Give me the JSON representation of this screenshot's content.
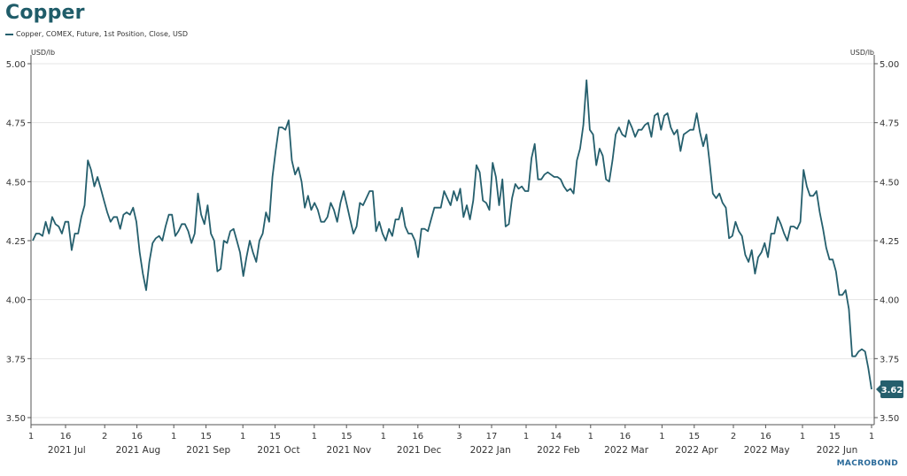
{
  "chart_data": {
    "type": "line",
    "title": "Copper",
    "legend": [
      "Copper, COMEX, Future, 1st Position, Close, USD"
    ],
    "legend_position": "top-left",
    "ylabel_left": "USD/lb",
    "ylabel_right": "USD/lb",
    "ylim": [
      3.5,
      5.0
    ],
    "yticks": [
      "3.50",
      "3.75",
      "4.00",
      "4.25",
      "4.50",
      "4.75",
      "5.00"
    ],
    "grid": true,
    "x_start": "2021-07-01",
    "x_end": "2022-07-01",
    "xticks": [
      {
        "date": "2021-07-01",
        "label": "1"
      },
      {
        "date": "2021-07-16",
        "label": "16"
      },
      {
        "date": "2021-08-02",
        "label": "2"
      },
      {
        "date": "2021-08-16",
        "label": "16"
      },
      {
        "date": "2021-09-01",
        "label": "1"
      },
      {
        "date": "2021-09-15",
        "label": "15"
      },
      {
        "date": "2021-10-01",
        "label": "1"
      },
      {
        "date": "2021-10-15",
        "label": "15"
      },
      {
        "date": "2021-11-01",
        "label": "1"
      },
      {
        "date": "2021-11-15",
        "label": "15"
      },
      {
        "date": "2021-12-01",
        "label": "1"
      },
      {
        "date": "2021-12-16",
        "label": "16"
      },
      {
        "date": "2022-01-03",
        "label": "3"
      },
      {
        "date": "2022-01-17",
        "label": "17"
      },
      {
        "date": "2022-02-01",
        "label": "1"
      },
      {
        "date": "2022-02-14",
        "label": "14"
      },
      {
        "date": "2022-03-01",
        "label": "1"
      },
      {
        "date": "2022-03-16",
        "label": "16"
      },
      {
        "date": "2022-04-01",
        "label": "1"
      },
      {
        "date": "2022-04-15",
        "label": "15"
      },
      {
        "date": "2022-05-02",
        "label": "2"
      },
      {
        "date": "2022-05-16",
        "label": "16"
      },
      {
        "date": "2022-06-01",
        "label": "1"
      },
      {
        "date": "2022-06-15",
        "label": "15"
      },
      {
        "date": "2022-07-01",
        "label": "1"
      }
    ],
    "months": [
      {
        "start": "2021-07-01",
        "end": "2021-08-01",
        "label": "2021 Jul"
      },
      {
        "start": "2021-08-01",
        "end": "2021-09-01",
        "label": "2021 Aug"
      },
      {
        "start": "2021-09-01",
        "end": "2021-10-01",
        "label": "2021 Sep"
      },
      {
        "start": "2021-10-01",
        "end": "2021-11-01",
        "label": "2021 Oct"
      },
      {
        "start": "2021-11-01",
        "end": "2021-12-01",
        "label": "2021 Nov"
      },
      {
        "start": "2021-12-01",
        "end": "2022-01-01",
        "label": "2021 Dec"
      },
      {
        "start": "2022-01-01",
        "end": "2022-02-01",
        "label": "2022 Jan"
      },
      {
        "start": "2022-02-01",
        "end": "2022-03-01",
        "label": "2022 Feb"
      },
      {
        "start": "2022-03-01",
        "end": "2022-04-01",
        "label": "2022 Mar"
      },
      {
        "start": "2022-04-01",
        "end": "2022-05-01",
        "label": "2022 Apr"
      },
      {
        "start": "2022-05-01",
        "end": "2022-06-01",
        "label": "2022 May"
      },
      {
        "start": "2022-06-01",
        "end": "2022-07-01",
        "label": "2022 Jun"
      }
    ],
    "series": [
      {
        "name": "Copper, COMEX, Future, 1st Position, Close, USD",
        "color": "#255f6d",
        "last_value_label": "3.62",
        "values": [
          4.25,
          4.28,
          4.28,
          4.27,
          4.33,
          4.28,
          4.35,
          4.32,
          4.31,
          4.28,
          4.33,
          4.33,
          4.21,
          4.28,
          4.28,
          4.35,
          4.4,
          4.59,
          4.55,
          4.48,
          4.52,
          4.47,
          4.42,
          4.37,
          4.33,
          4.35,
          4.35,
          4.3,
          4.36,
          4.37,
          4.36,
          4.39,
          4.33,
          4.2,
          4.11,
          4.04,
          4.16,
          4.24,
          4.26,
          4.27,
          4.25,
          4.31,
          4.36,
          4.36,
          4.27,
          4.29,
          4.32,
          4.32,
          4.29,
          4.24,
          4.28,
          4.45,
          4.36,
          4.32,
          4.4,
          4.28,
          4.25,
          4.12,
          4.13,
          4.25,
          4.24,
          4.29,
          4.3,
          4.25,
          4.2,
          4.1,
          4.18,
          4.25,
          4.2,
          4.16,
          4.25,
          4.28,
          4.37,
          4.33,
          4.52,
          4.63,
          4.73,
          4.73,
          4.72,
          4.76,
          4.59,
          4.53,
          4.56,
          4.5,
          4.39,
          4.44,
          4.38,
          4.41,
          4.38,
          4.33,
          4.33,
          4.35,
          4.41,
          4.38,
          4.33,
          4.41,
          4.46,
          4.4,
          4.34,
          4.28,
          4.31,
          4.41,
          4.4,
          4.43,
          4.46,
          4.46,
          4.29,
          4.33,
          4.28,
          4.25,
          4.3,
          4.27,
          4.34,
          4.34,
          4.39,
          4.31,
          4.28,
          4.28,
          4.25,
          4.18,
          4.3,
          4.3,
          4.29,
          4.34,
          4.39,
          4.39,
          4.39,
          4.46,
          4.43,
          4.4,
          4.46,
          4.42,
          4.47,
          4.35,
          4.4,
          4.34,
          4.42,
          4.57,
          4.54,
          4.42,
          4.41,
          4.38,
          4.58,
          4.52,
          4.4,
          4.51,
          4.31,
          4.32,
          4.43,
          4.49,
          4.47,
          4.48,
          4.46,
          4.46,
          4.6,
          4.66,
          4.51,
          4.51,
          4.53,
          4.54,
          4.53,
          4.52,
          4.52,
          4.51,
          4.48,
          4.46,
          4.47,
          4.45,
          4.59,
          4.64,
          4.74,
          4.93,
          4.72,
          4.7,
          4.57,
          4.64,
          4.61,
          4.51,
          4.5,
          4.59,
          4.7,
          4.73,
          4.7,
          4.69,
          4.76,
          4.73,
          4.69,
          4.72,
          4.72,
          4.74,
          4.75,
          4.69,
          4.78,
          4.79,
          4.72,
          4.78,
          4.79,
          4.73,
          4.7,
          4.72,
          4.63,
          4.7,
          4.71,
          4.72,
          4.72,
          4.79,
          4.71,
          4.65,
          4.7,
          4.58,
          4.45,
          4.43,
          4.45,
          4.41,
          4.39,
          4.26,
          4.27,
          4.33,
          4.29,
          4.27,
          4.19,
          4.16,
          4.21,
          4.11,
          4.18,
          4.2,
          4.24,
          4.18,
          4.28,
          4.28,
          4.35,
          4.32,
          4.28,
          4.25,
          4.31,
          4.31,
          4.3,
          4.33,
          4.55,
          4.48,
          4.44,
          4.44,
          4.46,
          4.37,
          4.3,
          4.22,
          4.17,
          4.17,
          4.12,
          4.02,
          4.02,
          4.04,
          3.96,
          3.76,
          3.76,
          3.78,
          3.79,
          3.78,
          3.71,
          3.62
        ]
      }
    ],
    "source": "MACROBOND"
  }
}
